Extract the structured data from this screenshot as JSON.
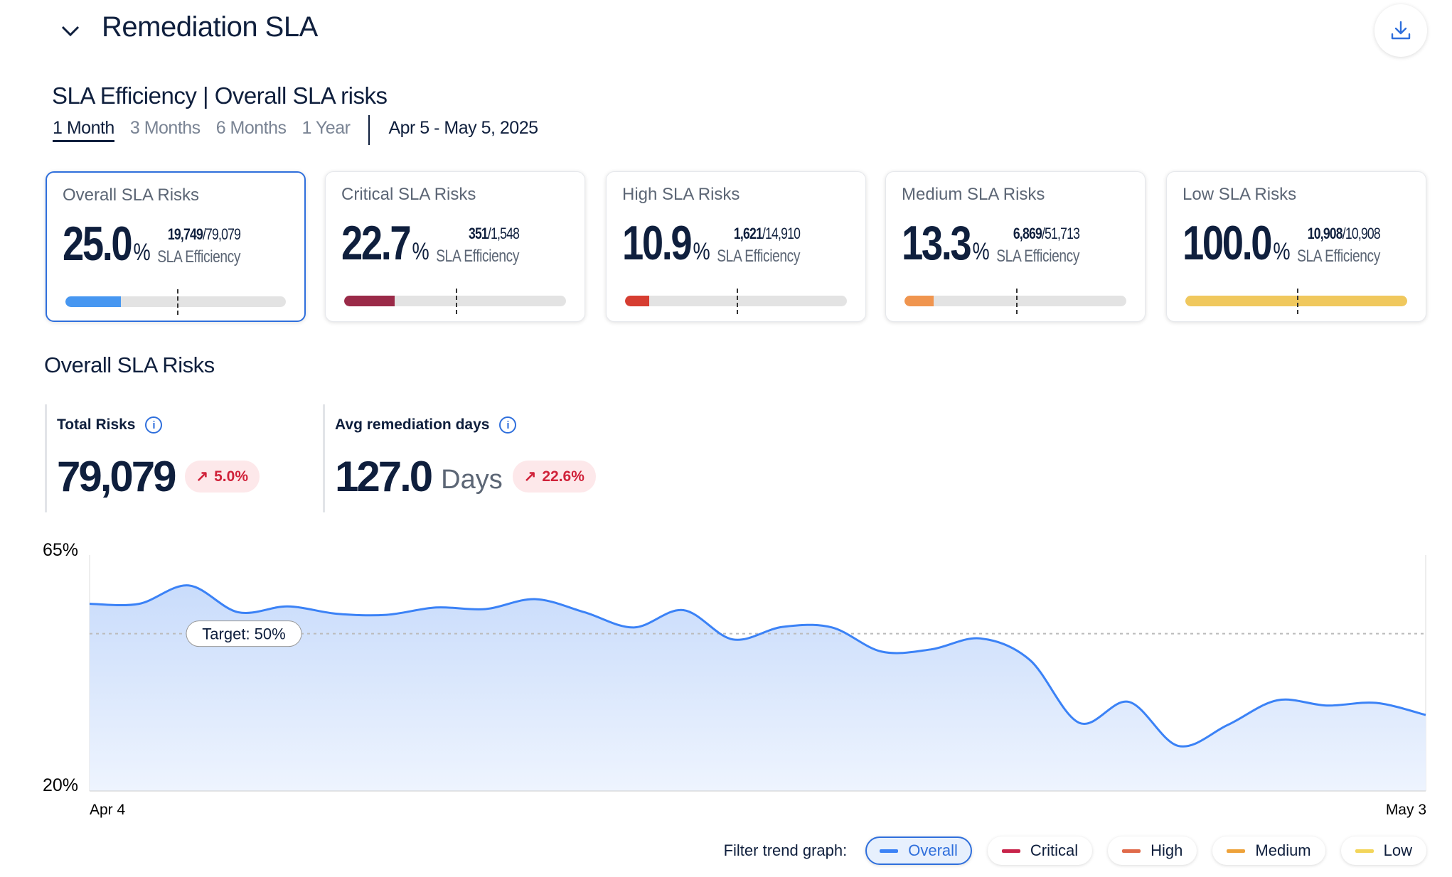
{
  "header": {
    "title": "Remediation SLA",
    "collapse_icon": "chevron-down-icon",
    "download_icon": "download-icon"
  },
  "section1": {
    "title": "SLA Efficiency | Overall SLA risks",
    "tabs": [
      {
        "label": "1 Month",
        "active": true
      },
      {
        "label": "3 Months"
      },
      {
        "label": "6 Months"
      },
      {
        "label": "1 Year"
      }
    ],
    "date_range": "Apr 5 - May 5, 2025"
  },
  "cards": [
    {
      "label": "Overall SLA Risks",
      "value": "25.0",
      "unit": "%",
      "num": "19,749",
      "den": "/79,079",
      "sub": "SLA Efficiency",
      "progress": 0.25,
      "target": 0.5,
      "color": "#4797f1",
      "selected": true
    },
    {
      "label": "Critical SLA Risks",
      "value": "22.7",
      "unit": "%",
      "num": "351",
      "den": "/1,548",
      "sub": "SLA Efficiency",
      "progress": 0.227,
      "target": 0.5,
      "color": "#9a2a48"
    },
    {
      "label": "High SLA Risks",
      "value": "10.9",
      "unit": "%",
      "num": "1,621",
      "den": "/14,910",
      "sub": "SLA Efficiency",
      "progress": 0.109,
      "target": 0.5,
      "color": "#d63d31"
    },
    {
      "label": "Medium SLA Risks",
      "value": "13.3",
      "unit": "%",
      "num": "6,869",
      "den": "/51,713",
      "sub": "SLA Efficiency",
      "progress": 0.133,
      "target": 0.5,
      "color": "#f0954f"
    },
    {
      "label": "Low SLA Risks",
      "value": "100.0",
      "unit": "%",
      "num": "10,908",
      "den": "/10,908",
      "sub": "SLA Efficiency",
      "progress": 1.0,
      "target": 0.5,
      "color": "#f0c85d"
    }
  ],
  "section2": {
    "title": "Overall SLA Risks",
    "kpis": [
      {
        "label": "Total Risks",
        "value": "79,079",
        "unit": "",
        "change": "5.0%"
      },
      {
        "label": "Avg remediation days",
        "value": "127.0",
        "unit": "Days",
        "change": "22.6%"
      }
    ]
  },
  "chart_data": {
    "type": "area",
    "ylim": [
      20,
      65
    ],
    "ytick_labels": [
      "65%",
      "20%"
    ],
    "xtick_labels": [
      "Apr 4",
      "May 3"
    ],
    "target": {
      "value": 50,
      "label": "Target: 50%"
    },
    "series": [
      {
        "name": "Overall",
        "color": "#3b82f6",
        "values": [
          55.7,
          55.7,
          59.2,
          54.1,
          55.2,
          53.8,
          53.6,
          55.0,
          54.7,
          56.6,
          54.1,
          51.2,
          54.5,
          48.9,
          51.3,
          51.2,
          46.6,
          47.0,
          49.1,
          45.0,
          33.0,
          37.0,
          28.6,
          32.6,
          37.3,
          36.3,
          36.8,
          34.5
        ]
      }
    ]
  },
  "filter": {
    "label": "Filter trend graph:",
    "options": [
      {
        "label": "Overall",
        "color": "#3b82f6",
        "active": true
      },
      {
        "label": "Critical",
        "color": "#c8244a"
      },
      {
        "label": "High",
        "color": "#e06a4a"
      },
      {
        "label": "Medium",
        "color": "#eea23a"
      },
      {
        "label": "Low",
        "color": "#f3d55a"
      }
    ]
  }
}
